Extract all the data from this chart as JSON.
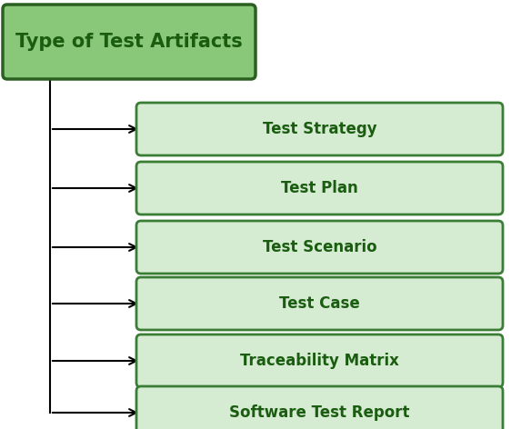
{
  "title": "Type of Test Artifacts",
  "items": [
    "Test Strategy",
    "Test Plan",
    "Test Scenario",
    "Test Case",
    "Traceability Matrix",
    "Software Test Report"
  ],
  "box_fill_color": "#d6ecd2",
  "box_edge_color": "#3a7d34",
  "title_fill_color": "#88c878",
  "title_edge_color": "#2a6020",
  "text_color": "#1a5c10",
  "bg_color": "#ffffff",
  "title_fontsize": 15,
  "item_fontsize": 12,
  "fig_width": 5.62,
  "fig_height": 4.72
}
